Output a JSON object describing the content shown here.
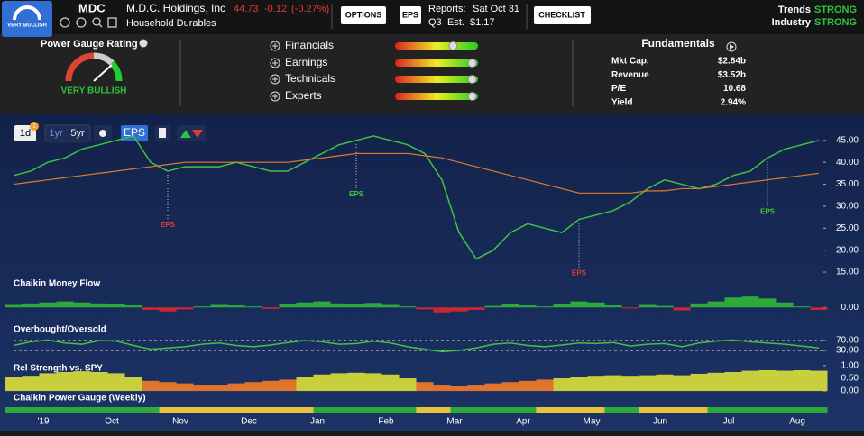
{
  "header": {
    "badge": "VERY BULLISH",
    "ticker": "MDC",
    "company": "M.D.C. Holdings, Inc",
    "industry": "Household Durables",
    "price": "44.73",
    "change": "-0.12",
    "change_pct": "(-0.27%)",
    "options": "OPTIONS",
    "eps": "EPS",
    "reports_label": "Reports:",
    "reports_date": "Sat Oct 31",
    "quarter": "Q3",
    "est_label": "Est.",
    "est_value": "$1.17",
    "checklist": "CHECKLIST",
    "trends_label": "Trends",
    "trends_value": "STRONG",
    "industry_label": "Industry",
    "industry_value": "STRONG"
  },
  "power_gauge": {
    "title": "Power Gauge Rating",
    "rating": "VERY BULLISH"
  },
  "factors": [
    {
      "name": "Financials",
      "level": 70
    },
    {
      "name": "Earnings",
      "level": 93
    },
    {
      "name": "Technicals",
      "level": 93
    },
    {
      "name": "Experts",
      "level": 93
    }
  ],
  "fundamentals": {
    "title": "Fundamentals",
    "rows": [
      [
        "Mkt Cap.",
        "$2.84b"
      ],
      [
        "Revenue",
        "$3.52b"
      ],
      [
        "P/E",
        "10.68"
      ],
      [
        "Yield",
        "2.94%"
      ]
    ]
  },
  "toolbar": {
    "badge": "1",
    "buttons": [
      "1d",
      "1yr",
      "5yr",
      "EPS"
    ]
  },
  "chart_data": [
    {
      "type": "line",
      "ylim": [
        14.4,
        50.3
      ],
      "yticks": [
        {
          "value": 15,
          "label": "15.00"
        },
        {
          "value": 20,
          "label": "20.00"
        },
        {
          "value": 25,
          "label": "25.00"
        },
        {
          "value": 30,
          "label": "30.00"
        },
        {
          "value": 35,
          "label": "35.00"
        },
        {
          "value": 40,
          "label": "40.00"
        },
        {
          "value": 45,
          "label": "45.00"
        }
      ],
      "grid": false,
      "series": [
        {
          "color": "#3ec43e",
          "values": [
            37,
            38,
            40,
            41,
            43,
            44,
            45,
            46,
            40,
            38,
            39,
            39,
            39,
            40,
            39,
            38,
            38,
            40,
            42,
            44,
            45,
            46,
            45,
            44,
            42,
            36,
            24,
            18,
            20,
            24,
            26,
            25,
            24,
            27,
            28,
            29,
            31,
            34,
            36,
            35,
            34,
            35,
            37,
            38,
            41,
            43,
            44,
            45
          ]
        },
        {
          "color": "#e07b2a",
          "values": [
            35,
            35.5,
            36,
            36.5,
            37,
            37.5,
            38,
            38.5,
            39,
            39.5,
            40,
            40,
            40,
            40,
            40,
            40,
            40,
            40.5,
            41,
            41.5,
            42,
            42,
            42,
            42,
            41.5,
            41,
            40,
            39,
            38,
            37,
            36,
            35,
            34,
            33,
            33,
            33,
            33,
            33.5,
            33.5,
            34,
            34,
            34.5,
            35,
            35.5,
            36,
            36.5,
            37,
            37.5
          ]
        }
      ],
      "annotations": [
        {
          "text": "EPS",
          "index": 9,
          "color": "#e03a3a"
        },
        {
          "text": "EPS",
          "index": 20,
          "color": "#3ec43e"
        },
        {
          "text": "EPS",
          "index": 33,
          "color": "#e03a3a"
        },
        {
          "text": "EPS",
          "index": 44,
          "color": "#3ec43e"
        }
      ]
    },
    {
      "type": "bar",
      "title": "Chaikin Money Flow",
      "ylim": [
        -0.25,
        0.35
      ],
      "yticks": [
        {
          "value": 0,
          "label": "0.00"
        }
      ],
      "grid": false,
      "positive_color": "#2eaa3a",
      "negative_color": "#c8282e",
      "values": [
        0.05,
        0.08,
        0.1,
        0.12,
        0.1,
        0.08,
        0.06,
        0.04,
        -0.05,
        -0.08,
        -0.04,
        0.02,
        0.05,
        0.04,
        0.02,
        -0.03,
        0.06,
        0.1,
        0.12,
        0.08,
        0.06,
        0.09,
        0.05,
        0.02,
        -0.04,
        -0.1,
        -0.08,
        -0.05,
        0.03,
        0.06,
        0.04,
        0.02,
        0.07,
        0.12,
        0.1,
        0.04,
        -0.02,
        0.05,
        0.03,
        -0.06,
        0.08,
        0.12,
        0.2,
        0.22,
        0.18,
        0.1,
        0.02,
        -0.05
      ]
    },
    {
      "type": "line",
      "title": "Overbought/Oversold",
      "ylim": [
        -10,
        92
      ],
      "yticks": [
        {
          "value": 70,
          "label": "70.00"
        },
        {
          "value": 30,
          "label": "30.00"
        }
      ],
      "grid": true,
      "series": [
        {
          "color": "#3ec43e",
          "values": [
            50,
            65,
            72,
            60,
            55,
            70,
            68,
            50,
            35,
            40,
            45,
            55,
            60,
            50,
            45,
            52,
            62,
            70,
            65,
            55,
            58,
            68,
            60,
            45,
            35,
            25,
            30,
            40,
            55,
            60,
            50,
            45,
            52,
            60,
            58,
            62,
            48,
            55,
            58,
            45,
            60,
            68,
            72,
            65,
            60,
            55,
            48,
            40
          ]
        }
      ]
    },
    {
      "type": "bar",
      "title": "Rel Strength vs. SPY",
      "ylim": [
        -0.21,
        1.21
      ],
      "yticks": [
        {
          "value": 1,
          "label": "1.00"
        },
        {
          "value": 0.5,
          "label": "0.50"
        },
        {
          "value": 0,
          "label": "0.00"
        }
      ],
      "grid": false,
      "positive_color": "#c9cf3c",
      "negative_color": "#e0742e",
      "values": [
        0.55,
        0.6,
        0.7,
        0.75,
        0.78,
        0.75,
        0.7,
        0.55,
        0.4,
        0.35,
        0.3,
        0.25,
        0.25,
        0.3,
        0.35,
        0.4,
        0.45,
        0.55,
        0.65,
        0.7,
        0.72,
        0.7,
        0.65,
        0.5,
        0.35,
        0.25,
        0.2,
        0.25,
        0.3,
        0.35,
        0.4,
        0.45,
        0.5,
        0.55,
        0.6,
        0.62,
        0.6,
        0.62,
        0.65,
        0.62,
        0.68,
        0.72,
        0.75,
        0.8,
        0.82,
        0.8,
        0.82,
        0.8
      ]
    },
    {
      "type": "strip",
      "title": "Chaikin Power Gauge (Weekly)",
      "categories": [
        null,
        "'19",
        null,
        null,
        null,
        "Oct",
        null,
        null,
        null,
        "Nov",
        null,
        null,
        null,
        "Dec",
        null,
        null,
        null,
        "Jan",
        null,
        null,
        null,
        "Feb",
        null,
        null,
        null,
        "Mar",
        null,
        null,
        null,
        "Apr",
        null,
        null,
        null,
        "May",
        null,
        null,
        null,
        "Jun",
        null,
        null,
        null,
        "Jul",
        null,
        null,
        null,
        "Aug",
        null,
        null
      ],
      "colors": [
        "#2eaa3a",
        "#2eaa3a",
        "#2eaa3a",
        "#2eaa3a",
        "#2eaa3a",
        "#2eaa3a",
        "#2eaa3a",
        "#2eaa3a",
        "#2eaa3a",
        "#e8c23a",
        "#e8c23a",
        "#e8c23a",
        "#e8c23a",
        "#e8c23a",
        "#e8c23a",
        "#e8c23a",
        "#e8c23a",
        "#e8c23a",
        "#2eaa3a",
        "#2eaa3a",
        "#2eaa3a",
        "#2eaa3a",
        "#2eaa3a",
        "#2eaa3a",
        "#e8c23a",
        "#e8c23a",
        "#2eaa3a",
        "#2eaa3a",
        "#2eaa3a",
        "#2eaa3a",
        "#2eaa3a",
        "#e8c23a",
        "#e8c23a",
        "#e8c23a",
        "#e8c23a",
        "#2eaa3a",
        "#2eaa3a",
        "#e8c23a",
        "#e8c23a",
        "#e8c23a",
        "#e8c23a",
        "#2eaa3a",
        "#2eaa3a",
        "#2eaa3a",
        "#2eaa3a",
        "#2eaa3a",
        "#2eaa3a",
        "#2eaa3a"
      ]
    }
  ]
}
